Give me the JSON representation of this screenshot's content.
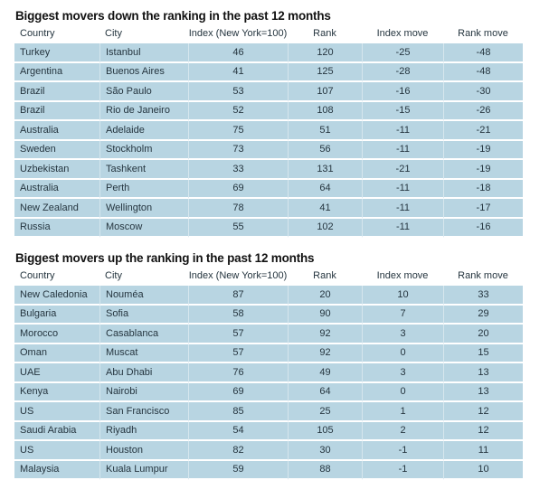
{
  "colors": {
    "page_background": "#ffffff",
    "row_background": "#b8d5e2",
    "row_separator": "#ffffff",
    "column_separator": "#d6e6ee",
    "body_text": "#25353f",
    "title_text": "#121212"
  },
  "chart_data": [
    {
      "type": "table",
      "title": "Biggest movers down the ranking in the past 12 months",
      "columns": [
        "Country",
        "City",
        "Index (New York=100)",
        "Rank",
        "Index move",
        "Rank move"
      ],
      "rows": [
        [
          "Turkey",
          "Istanbul",
          46,
          120,
          -25,
          -48
        ],
        [
          "Argentina",
          "Buenos Aires",
          41,
          125,
          -28,
          -48
        ],
        [
          "Brazil",
          "São Paulo",
          53,
          107,
          -16,
          -30
        ],
        [
          "Brazil",
          "Rio de Janeiro",
          52,
          108,
          -15,
          -26
        ],
        [
          "Australia",
          "Adelaide",
          75,
          51,
          -11,
          -21
        ],
        [
          "Sweden",
          "Stockholm",
          73,
          56,
          -11,
          -19
        ],
        [
          "Uzbekistan",
          "Tashkent",
          33,
          131,
          -21,
          -19
        ],
        [
          "Australia",
          "Perth",
          69,
          64,
          -11,
          -18
        ],
        [
          "New Zealand",
          "Wellington",
          78,
          41,
          -11,
          -17
        ],
        [
          "Russia",
          "Moscow",
          55,
          102,
          -11,
          -16
        ]
      ]
    },
    {
      "type": "table",
      "title": "Biggest movers up the ranking in the past 12 months",
      "columns": [
        "Country",
        "City",
        "Index (New York=100)",
        "Rank",
        "Index move",
        "Rank move"
      ],
      "rows": [
        [
          "New Caledonia",
          "Nouméa",
          87,
          20,
          10,
          33
        ],
        [
          "Bulgaria",
          "Sofia",
          58,
          90,
          7,
          29
        ],
        [
          "Morocco",
          "Casablanca",
          57,
          92,
          3,
          20
        ],
        [
          "Oman",
          "Muscat",
          57,
          92,
          0,
          15
        ],
        [
          "UAE",
          "Abu Dhabi",
          76,
          49,
          3,
          13
        ],
        [
          "Kenya",
          "Nairobi",
          69,
          64,
          0,
          13
        ],
        [
          "US",
          "San Francisco",
          85,
          25,
          1,
          12
        ],
        [
          "Saudi Arabia",
          "Riyadh",
          54,
          105,
          2,
          12
        ],
        [
          "US",
          "Houston",
          82,
          30,
          -1,
          11
        ],
        [
          "Malaysia",
          "Kuala Lumpur",
          59,
          88,
          -1,
          10
        ]
      ]
    }
  ]
}
